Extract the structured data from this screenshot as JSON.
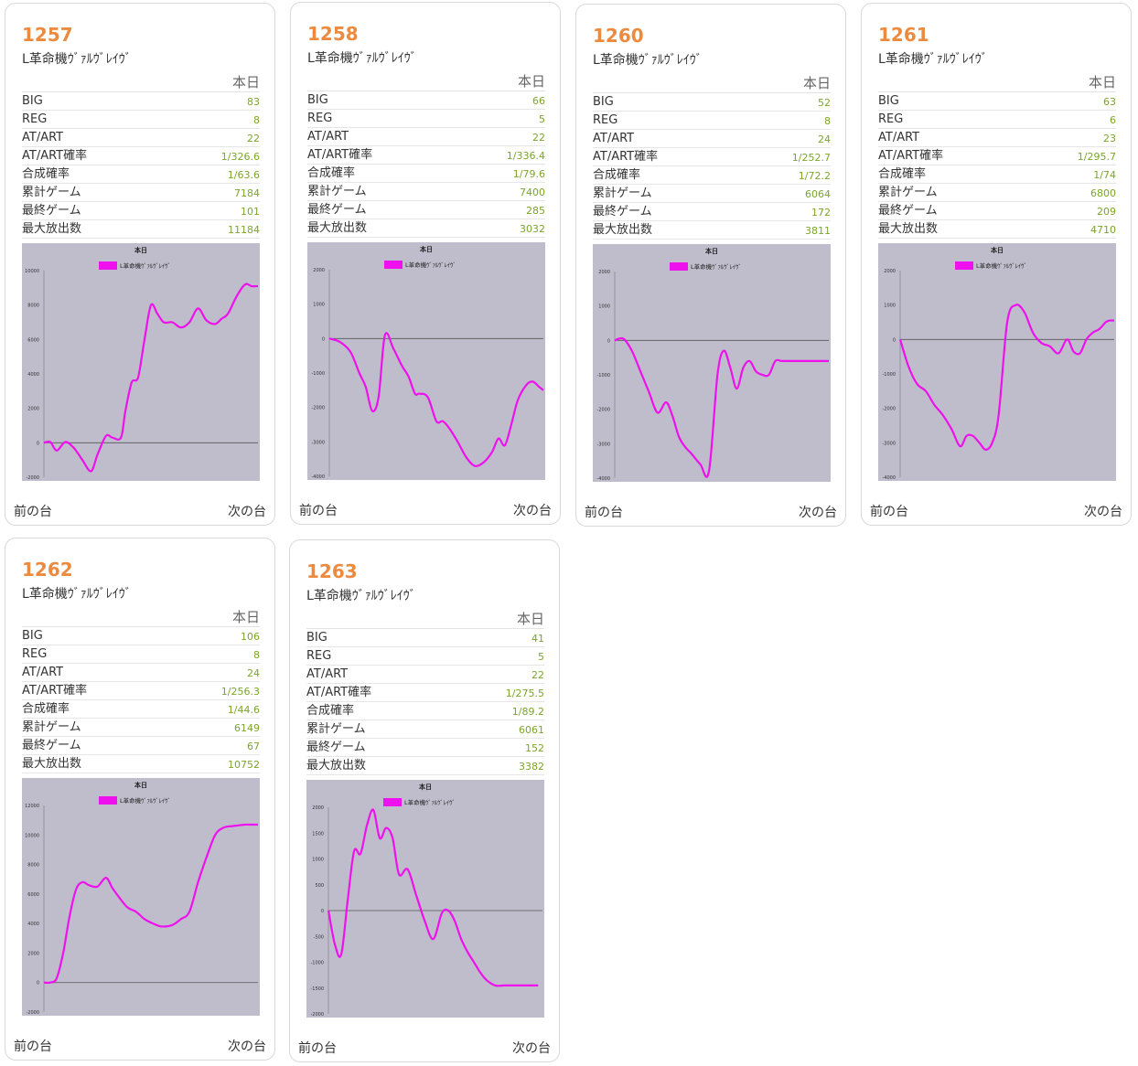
{
  "labels": {
    "today": "本日",
    "prev": "前の台",
    "next": "次の台",
    "rows": [
      "BIG",
      "REG",
      "AT/ART",
      "AT/ART確率",
      "合成確率",
      "累計ゲーム",
      "最終ゲーム",
      "最大放出数"
    ]
  },
  "machines": [
    {
      "number": "1257",
      "model": "L革命機ｳﾞｧﾙｳﾞﾚｲｳﾞ",
      "stats": [
        "83",
        "8",
        "22",
        "1/326.6",
        "1/63.6",
        "7184",
        "101",
        "11184"
      ],
      "chart_data": {
        "type": "line",
        "title": "本日",
        "legend": "L革命機ｳﾞｧﾙｳﾞﾚｲｳﾞ",
        "legend_position": "top",
        "ylim": [
          -2000,
          10000
        ],
        "yticks": [
          -2000,
          0,
          2000,
          4000,
          6000,
          8000,
          10000
        ],
        "series": [
          {
            "name": "L革命機ｳﾞｧﾙｳﾞﾚｲｳﾞ",
            "x": [
              0,
              0.03,
              0.06,
              0.1,
              0.14,
              0.18,
              0.22,
              0.25,
              0.29,
              0.32,
              0.36,
              0.38,
              0.41,
              0.44,
              0.47,
              0.5,
              0.53,
              0.56,
              0.6,
              0.64,
              0.68,
              0.72,
              0.76,
              0.8,
              0.83,
              0.86,
              0.9,
              0.94,
              0.97,
              1
            ],
            "y": [
              0,
              50,
              -450,
              50,
              -300,
              -1000,
              -1650,
              -700,
              400,
              300,
              300,
              1800,
              3500,
              3800,
              6000,
              8000,
              7500,
              7000,
              7000,
              6700,
              7000,
              7800,
              7100,
              6900,
              7200,
              7500,
              8500,
              9200,
              9100,
              9100
            ]
          }
        ]
      }
    },
    {
      "number": "1258",
      "model": "L革命機ｳﾞｧﾙｳﾞﾚｲｳﾞ",
      "stats": [
        "66",
        "5",
        "22",
        "1/336.4",
        "1/79.6",
        "7400",
        "285",
        "3032"
      ],
      "chart_data": {
        "type": "line",
        "title": "本日",
        "legend": "L革命機ｳﾞｧﾙｳﾞﾚｲｳﾞ",
        "legend_position": "top",
        "ylim": [
          -4000,
          2000
        ],
        "yticks": [
          -4000,
          -3000,
          -2000,
          -1000,
          0,
          1000,
          2000
        ],
        "series": [
          {
            "name": "L革命機ｳﾞｧﾙｳﾞﾚｲｳﾞ",
            "x": [
              0,
              0.05,
              0.1,
              0.14,
              0.17,
              0.2,
              0.23,
              0.26,
              0.3,
              0.34,
              0.37,
              0.4,
              0.42,
              0.46,
              0.5,
              0.53,
              0.56,
              0.6,
              0.64,
              0.68,
              0.72,
              0.76,
              0.79,
              0.82,
              0.85,
              0.88,
              0.92,
              0.95,
              0.98,
              1
            ],
            "y": [
              0,
              -100,
              -400,
              -1000,
              -1400,
              -2100,
              -1700,
              100,
              -300,
              -800,
              -1100,
              -1600,
              -1600,
              -1700,
              -2400,
              -2400,
              -2600,
              -3000,
              -3450,
              -3700,
              -3600,
              -3300,
              -2900,
              -3100,
              -2500,
              -1800,
              -1350,
              -1250,
              -1400,
              -1500
            ]
          }
        ]
      }
    },
    {
      "number": "1260",
      "model": "L革命機ｳﾞｧﾙｳﾞﾚｲｳﾞ",
      "stats": [
        "52",
        "8",
        "24",
        "1/252.7",
        "1/72.2",
        "6064",
        "172",
        "3811"
      ],
      "chart_data": {
        "type": "line",
        "title": "本日",
        "legend": "L革命機ｳﾞｧﾙｳﾞﾚｲｳﾞ",
        "legend_position": "top",
        "ylim": [
          -4000,
          2000
        ],
        "yticks": [
          -4000,
          -3000,
          -2000,
          -1000,
          0,
          1000,
          2000
        ],
        "series": [
          {
            "name": "L革命機ｳﾞｧﾙｳﾞﾚｲｳﾞ",
            "x": [
              0,
              0.04,
              0.08,
              0.12,
              0.16,
              0.2,
              0.24,
              0.27,
              0.3,
              0.33,
              0.36,
              0.4,
              0.44,
              0.48,
              0.51,
              0.54,
              0.57,
              0.6,
              0.63,
              0.66,
              0.69,
              0.72,
              0.75,
              0.78,
              0.81,
              0.84,
              0.88,
              0.92,
              0.96,
              1
            ],
            "y": [
              0,
              50,
              -300,
              -900,
              -1500,
              -2100,
              -1800,
              -2200,
              -2800,
              -3100,
              -3300,
              -3600,
              -3800,
              -1000,
              -300,
              -800,
              -1400,
              -800,
              -600,
              -900,
              -1000,
              -1000,
              -600,
              -600,
              -600,
              -600,
              -600,
              -600,
              -600,
              -600
            ]
          }
        ]
      }
    },
    {
      "number": "1261",
      "model": "L革命機ｳﾞｧﾙｳﾞﾚｲｳﾞ",
      "stats": [
        "63",
        "6",
        "23",
        "1/295.7",
        "1/74",
        "6800",
        "209",
        "4710"
      ],
      "chart_data": {
        "type": "line",
        "title": "本日",
        "legend": "L革命機ｳﾞｧﾙｳﾞﾚｲｳﾞ",
        "legend_position": "top",
        "ylim": [
          -4000,
          2000
        ],
        "yticks": [
          -4000,
          -3000,
          -2000,
          -1000,
          0,
          1000,
          2000
        ],
        "series": [
          {
            "name": "L革命機ｳﾞｧﾙｳﾞﾚｲｳﾞ",
            "x": [
              0,
              0.04,
              0.08,
              0.12,
              0.16,
              0.2,
              0.24,
              0.28,
              0.31,
              0.34,
              0.37,
              0.4,
              0.43,
              0.46,
              0.5,
              0.54,
              0.58,
              0.62,
              0.66,
              0.7,
              0.74,
              0.78,
              0.81,
              0.84,
              0.87,
              0.9,
              0.93,
              0.96,
              0.98,
              1
            ],
            "y": [
              0,
              -800,
              -1300,
              -1500,
              -1900,
              -2200,
              -2600,
              -3100,
              -2800,
              -2800,
              -3000,
              -3200,
              -3000,
              -2200,
              500,
              1000,
              800,
              200,
              -100,
              -200,
              -400,
              0,
              -350,
              -400,
              0,
              200,
              300,
              500,
              550,
              550
            ]
          }
        ]
      }
    },
    {
      "number": "1262",
      "model": "L革命機ｳﾞｧﾙｳﾞﾚｲｳﾞ",
      "stats": [
        "106",
        "8",
        "24",
        "1/256.3",
        "1/44.6",
        "6149",
        "67",
        "10752"
      ],
      "chart_data": {
        "type": "line",
        "title": "本日",
        "legend": "L革命機ｳﾞｧﾙｳﾞﾚｲｳﾞ",
        "legend_position": "top",
        "ylim": [
          -2000,
          12000
        ],
        "yticks": [
          -2000,
          0,
          2000,
          4000,
          6000,
          8000,
          10000,
          12000
        ],
        "series": [
          {
            "name": "L革命機ｳﾞｧﾙｳﾞﾚｲｳﾞ",
            "x": [
              0,
              0.03,
              0.06,
              0.09,
              0.12,
              0.15,
              0.18,
              0.21,
              0.25,
              0.29,
              0.32,
              0.35,
              0.39,
              0.43,
              0.47,
              0.51,
              0.55,
              0.6,
              0.64,
              0.68,
              0.72,
              0.76,
              0.8,
              0.84,
              0.88,
              0.91,
              0.94,
              0.97,
              0.99,
              1
            ],
            "y": [
              0,
              0,
              300,
              2000,
              4500,
              6300,
              6800,
              6600,
              6500,
              7100,
              6400,
              5800,
              5100,
              4800,
              4300,
              4000,
              3800,
              3900,
              4300,
              4800,
              6800,
              8500,
              10000,
              10500,
              10600,
              10650,
              10700,
              10700,
              10700,
              10700
            ]
          }
        ]
      }
    },
    {
      "number": "1263",
      "model": "L革命機ｳﾞｧﾙｳﾞﾚｲｳﾞ",
      "stats": [
        "41",
        "5",
        "22",
        "1/275.5",
        "1/89.2",
        "6061",
        "152",
        "3382"
      ],
      "chart_data": {
        "type": "line",
        "title": "本日",
        "legend": "L革命機ｳﾞｧﾙｳﾞﾚｲｳﾞ",
        "legend_position": "top",
        "ylim": [
          -2000,
          2000
        ],
        "yticks": [
          -2000,
          -1500,
          -1000,
          -500,
          0,
          500,
          1000,
          1500,
          2000
        ],
        "series": [
          {
            "name": "L革命機ｳﾞｧﾙｳﾞﾚｲｳﾞ",
            "x": [
              0,
              0.03,
              0.06,
              0.09,
              0.12,
              0.15,
              0.18,
              0.21,
              0.24,
              0.27,
              0.3,
              0.33,
              0.37,
              0.41,
              0.45,
              0.49,
              0.53,
              0.56,
              0.59,
              0.62,
              0.65,
              0.68,
              0.71,
              0.74,
              0.78,
              0.82,
              0.86,
              0.9,
              0.94,
              0.98
            ],
            "y": [
              0,
              -650,
              -850,
              200,
              1150,
              1100,
              1650,
              1950,
              1400,
              1600,
              1400,
              700,
              800,
              300,
              -200,
              -550,
              -50,
              0,
              -200,
              -550,
              -800,
              -1000,
              -1200,
              -1350,
              -1450,
              -1450,
              -1450,
              -1450,
              -1450,
              -1450
            ]
          }
        ]
      }
    }
  ]
}
